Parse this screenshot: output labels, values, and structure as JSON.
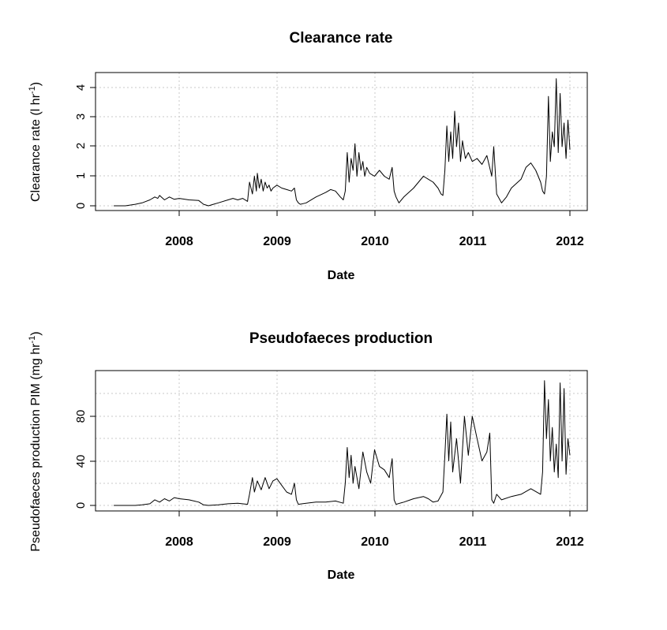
{
  "chart_data": [
    {
      "type": "line",
      "title": "Clearance rate",
      "xlabel": "Date",
      "ylabel": {
        "main": "Clearance rate  (l hr",
        "sup": "-1",
        "close": ")"
      },
      "x_ticks": [
        "2008",
        "2009",
        "2010",
        "2011",
        "2012"
      ],
      "y_ticks": [
        "0",
        "1",
        "2",
        "3",
        "4"
      ],
      "ylim": [
        -0.2,
        4.5
      ],
      "grid": true,
      "series": [
        {
          "x": [
            2007.33,
            2007.45,
            2007.55,
            2007.62,
            2007.7,
            2007.75,
            2007.78,
            2007.8,
            2007.85,
            2007.9,
            2007.95,
            2008.0,
            2008.1,
            2008.2,
            2008.25,
            2008.3,
            2008.35,
            2008.4,
            2008.5,
            2008.55,
            2008.6,
            2008.65,
            2008.7,
            2008.72,
            2008.75,
            2008.77,
            2008.79,
            2008.8,
            2008.82,
            2008.84,
            2008.86,
            2008.88,
            2008.9,
            2008.92,
            2008.94,
            2008.96,
            2009.0,
            2009.05,
            2009.1,
            2009.15,
            2009.18,
            2009.2,
            2009.22,
            2009.24,
            2009.3,
            2009.4,
            2009.5,
            2009.55,
            2009.6,
            2009.65,
            2009.68,
            2009.7,
            2009.72,
            2009.74,
            2009.76,
            2009.78,
            2009.8,
            2009.82,
            2009.84,
            2009.86,
            2009.88,
            2009.9,
            2009.92,
            2009.95,
            2010.0,
            2010.05,
            2010.1,
            2010.15,
            2010.18,
            2010.2,
            2010.22,
            2010.25,
            2010.3,
            2010.4,
            2010.5,
            2010.55,
            2010.6,
            2010.65,
            2010.68,
            2010.7,
            2010.72,
            2010.74,
            2010.76,
            2010.78,
            2010.8,
            2010.82,
            2010.84,
            2010.86,
            2010.88,
            2010.9,
            2010.93,
            2010.96,
            2011.0,
            2011.05,
            2011.1,
            2011.15,
            2011.2,
            2011.22,
            2011.25,
            2011.3,
            2011.35,
            2011.4,
            2011.5,
            2011.55,
            2011.6,
            2011.65,
            2011.7,
            2011.72,
            2011.74,
            2011.76,
            2011.78,
            2011.8,
            2011.82,
            2011.84,
            2011.86,
            2011.88,
            2011.9,
            2011.92,
            2011.94,
            2011.96,
            2011.98,
            2012.0
          ],
          "y": [
            0.0,
            0.0,
            0.05,
            0.1,
            0.2,
            0.3,
            0.25,
            0.35,
            0.2,
            0.3,
            0.22,
            0.25,
            0.2,
            0.18,
            0.05,
            0.0,
            0.05,
            0.1,
            0.2,
            0.25,
            0.2,
            0.25,
            0.15,
            0.8,
            0.4,
            1.0,
            0.5,
            1.1,
            0.6,
            0.9,
            0.5,
            0.8,
            0.6,
            0.7,
            0.5,
            0.6,
            0.7,
            0.6,
            0.55,
            0.5,
            0.6,
            0.2,
            0.1,
            0.05,
            0.1,
            0.3,
            0.45,
            0.55,
            0.5,
            0.3,
            0.2,
            0.5,
            1.8,
            0.8,
            1.6,
            1.2,
            2.1,
            1.0,
            1.8,
            1.2,
            1.5,
            1.0,
            1.3,
            1.1,
            1.0,
            1.2,
            1.0,
            0.9,
            1.3,
            0.5,
            0.3,
            0.1,
            0.3,
            0.6,
            1.0,
            0.9,
            0.8,
            0.6,
            0.4,
            0.35,
            1.2,
            2.7,
            1.5,
            2.5,
            1.6,
            3.2,
            2.0,
            2.8,
            1.5,
            2.2,
            1.6,
            1.8,
            1.5,
            1.6,
            1.4,
            1.7,
            1.0,
            2.0,
            0.4,
            0.1,
            0.3,
            0.6,
            0.9,
            1.3,
            1.45,
            1.2,
            0.8,
            0.5,
            0.4,
            1.0,
            3.7,
            1.5,
            2.5,
            2.0,
            4.3,
            1.8,
            3.8,
            2.0,
            2.8,
            1.6,
            2.9,
            1.9
          ]
        }
      ]
    },
    {
      "type": "line",
      "title": "Pseudofaeces production",
      "xlabel": "Date",
      "ylabel": {
        "main": "Pseudofaeces production PIM  (mg hr",
        "sup": "-1",
        "close": ")"
      },
      "x_ticks": [
        "2008",
        "2009",
        "2010",
        "2011",
        "2012"
      ],
      "y_ticks": [
        "0",
        "40",
        "80"
      ],
      "ylim": [
        -5,
        115
      ],
      "grid": true,
      "series": [
        {
          "x": [
            2007.33,
            2007.45,
            2007.55,
            2007.62,
            2007.7,
            2007.75,
            2007.8,
            2007.85,
            2007.9,
            2007.95,
            2008.0,
            2008.1,
            2008.2,
            2008.25,
            2008.3,
            2008.4,
            2008.5,
            2008.6,
            2008.7,
            2008.72,
            2008.75,
            2008.77,
            2008.8,
            2008.84,
            2008.88,
            2008.92,
            2008.96,
            2009.0,
            2009.05,
            2009.1,
            2009.15,
            2009.18,
            2009.2,
            2009.22,
            2009.3,
            2009.4,
            2009.5,
            2009.6,
            2009.68,
            2009.7,
            2009.72,
            2009.74,
            2009.76,
            2009.78,
            2009.8,
            2009.84,
            2009.88,
            2009.92,
            2009.96,
            2010.0,
            2010.05,
            2010.1,
            2010.15,
            2010.18,
            2010.2,
            2010.22,
            2010.3,
            2010.4,
            2010.5,
            2010.55,
            2010.6,
            2010.65,
            2010.7,
            2010.72,
            2010.74,
            2010.76,
            2010.78,
            2010.8,
            2010.84,
            2010.88,
            2010.92,
            2010.96,
            2011.0,
            2011.05,
            2011.1,
            2011.15,
            2011.18,
            2011.2,
            2011.22,
            2011.25,
            2011.3,
            2011.4,
            2011.5,
            2011.6,
            2011.7,
            2011.72,
            2011.74,
            2011.76,
            2011.78,
            2011.8,
            2011.82,
            2011.84,
            2011.86,
            2011.88,
            2011.9,
            2011.92,
            2011.94,
            2011.96,
            2011.98,
            2012.0
          ],
          "y": [
            0.0,
            0.0,
            0.0,
            0.5,
            1.5,
            5,
            3,
            6,
            4,
            7,
            6,
            5,
            3,
            0.5,
            0.0,
            0.5,
            1.5,
            2,
            1,
            10,
            25,
            12,
            22,
            14,
            25,
            15,
            22,
            24,
            18,
            12,
            10,
            20,
            5,
            1,
            2,
            3,
            3,
            4,
            2,
            20,
            52,
            25,
            45,
            20,
            35,
            15,
            48,
            30,
            20,
            50,
            35,
            32,
            25,
            42,
            5,
            1,
            3,
            6,
            8,
            6,
            3,
            4,
            12,
            45,
            82,
            40,
            75,
            30,
            60,
            20,
            80,
            45,
            80,
            60,
            40,
            48,
            65,
            5,
            2,
            10,
            5,
            8,
            10,
            15,
            10,
            30,
            112,
            60,
            95,
            40,
            70,
            30,
            55,
            25,
            110,
            40,
            105,
            28,
            60,
            45
          ]
        }
      ]
    }
  ]
}
